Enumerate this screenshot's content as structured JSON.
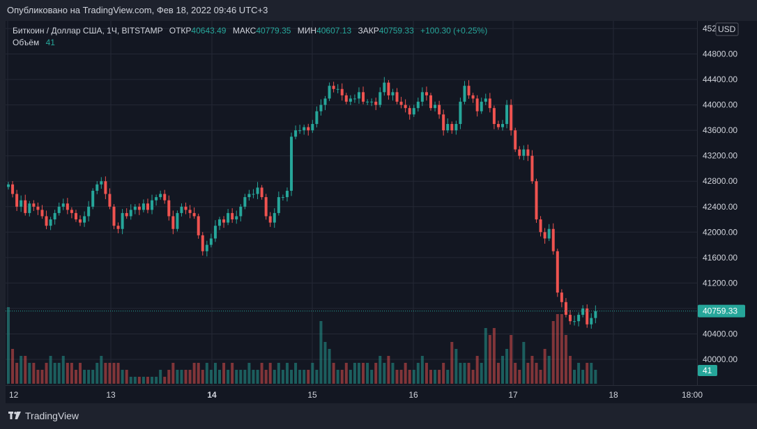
{
  "header": {
    "published_text": "Опубликовано на TradingView.com, Фев 18, 2022 09:46 UTC+3"
  },
  "legend": {
    "symbol": "Биткоин / Доллар США, 1Ч, BITSTAMP",
    "open_label": "ОТКР",
    "open_value": "40643.49",
    "high_label": "МАКС",
    "high_value": "40779.35",
    "low_label": "МИН",
    "low_value": "40607.13",
    "close_label": "ЗАКР",
    "close_value": "40759.33",
    "change": "+100.30 (+0.25%)",
    "volume_label": "Объём",
    "volume_value": "41"
  },
  "price_axis": {
    "currency": "USD",
    "ticks": [
      "45200.00",
      "44800.00",
      "44400.00",
      "44000.00",
      "43600.00",
      "43200.00",
      "42800.00",
      "42400.00",
      "42000.00",
      "41600.00",
      "41200.00",
      "40800.00",
      "40400.00",
      "40000.00"
    ],
    "last_price_badge": "40759.33",
    "volume_badge": "41"
  },
  "time_axis": {
    "labels": [
      "12",
      "13",
      "14",
      "15",
      "16",
      "17",
      "18",
      "18:00"
    ]
  },
  "footer": {
    "brand": "TradingView"
  },
  "colors": {
    "up": "#26a69a",
    "down": "#ef5350",
    "background": "#131722",
    "text": "#d1d4dc"
  },
  "chart_data": {
    "type": "candlestick",
    "interval": "1h",
    "ylim": [
      39600,
      45300
    ],
    "x_labels": [
      "12",
      "13",
      "14",
      "15",
      "16",
      "17",
      "18",
      "18:00"
    ],
    "close_series": [
      42750,
      42600,
      42400,
      42500,
      42300,
      42450,
      42400,
      42350,
      42250,
      42100,
      42200,
      42300,
      42400,
      42450,
      42350,
      42300,
      42200,
      42150,
      42250,
      42400,
      42650,
      42750,
      42800,
      42600,
      42400,
      42100,
      42050,
      42300,
      42250,
      42350,
      42400,
      42350,
      42450,
      42350,
      42500,
      42550,
      42600,
      42500,
      42250,
      42050,
      42300,
      42400,
      42350,
      42300,
      42250,
      41950,
      41700,
      41800,
      41900,
      42100,
      42200,
      42150,
      42300,
      42200,
      42250,
      42400,
      42550,
      42600,
      42600,
      42700,
      42550,
      42250,
      42150,
      42300,
      42550,
      42550,
      42650,
      43500,
      43600,
      43600,
      43650,
      43600,
      43700,
      43900,
      44000,
      44100,
      44300,
      44250,
      44250,
      44150,
      44050,
      44100,
      44100,
      44200,
      44050,
      44050,
      44050,
      44000,
      44200,
      44350,
      44150,
      44200,
      44050,
      44000,
      43950,
      43850,
      43950,
      44050,
      44200,
      44150,
      43950,
      44000,
      43850,
      43600,
      43700,
      43600,
      43700,
      44050,
      44300,
      44150,
      44100,
      43900,
      44050,
      44100,
      43950,
      43700,
      43650,
      43700,
      44000,
      43600,
      43300,
      43200,
      43300,
      43200,
      42800,
      42200,
      42000,
      41900,
      42050,
      41700,
      41050,
      40900,
      40700,
      40600,
      40600,
      40700,
      40800,
      40550,
      40650,
      40760
    ],
    "volume_series": [
      1.1,
      0.5,
      0.3,
      0.4,
      0.4,
      0.3,
      0.3,
      0.2,
      0.2,
      0.3,
      0.4,
      0.3,
      0.3,
      0.4,
      0.3,
      0.3,
      0.2,
      0.3,
      0.2,
      0.2,
      0.2,
      0.3,
      0.4,
      0.3,
      0.3,
      0.3,
      0.3,
      0.2,
      0.2,
      0.1,
      0.1,
      0.1,
      0.1,
      0.1,
      0.1,
      0.1,
      0.2,
      0.1,
      0.2,
      0.3,
      0.2,
      0.2,
      0.2,
      0.2,
      0.3,
      0.3,
      0.2,
      0.3,
      0.2,
      0.3,
      0.2,
      0.3,
      0.2,
      0.3,
      0.2,
      0.2,
      0.2,
      0.3,
      0.2,
      0.2,
      0.3,
      0.2,
      0.3,
      0.2,
      0.3,
      0.2,
      0.3,
      0.2,
      0.3,
      0.2,
      0.2,
      0.2,
      0.3,
      0.2,
      0.9,
      0.6,
      0.5,
      0.3,
      0.2,
      0.2,
      0.3,
      0.2,
      0.3,
      0.3,
      0.3,
      0.3,
      0.2,
      0.3,
      0.4,
      0.3,
      0.4,
      0.3,
      0.2,
      0.2,
      0.3,
      0.2,
      0.2,
      0.3,
      0.4,
      0.3,
      0.2,
      0.2,
      0.2,
      0.3,
      0.2,
      0.6,
      0.5,
      0.3,
      0.3,
      0.3,
      0.2,
      0.4,
      0.3,
      0.8,
      0.7,
      0.8,
      0.3,
      0.4,
      0.5,
      0.7,
      0.3,
      0.2,
      0.6,
      0.3,
      0.4,
      0.3,
      0.2,
      0.5,
      0.4,
      0.9,
      1.0,
      1.0,
      0.7,
      0.4,
      0.2,
      0.3,
      0.2,
      0.3,
      0.3,
      0.2
    ]
  }
}
